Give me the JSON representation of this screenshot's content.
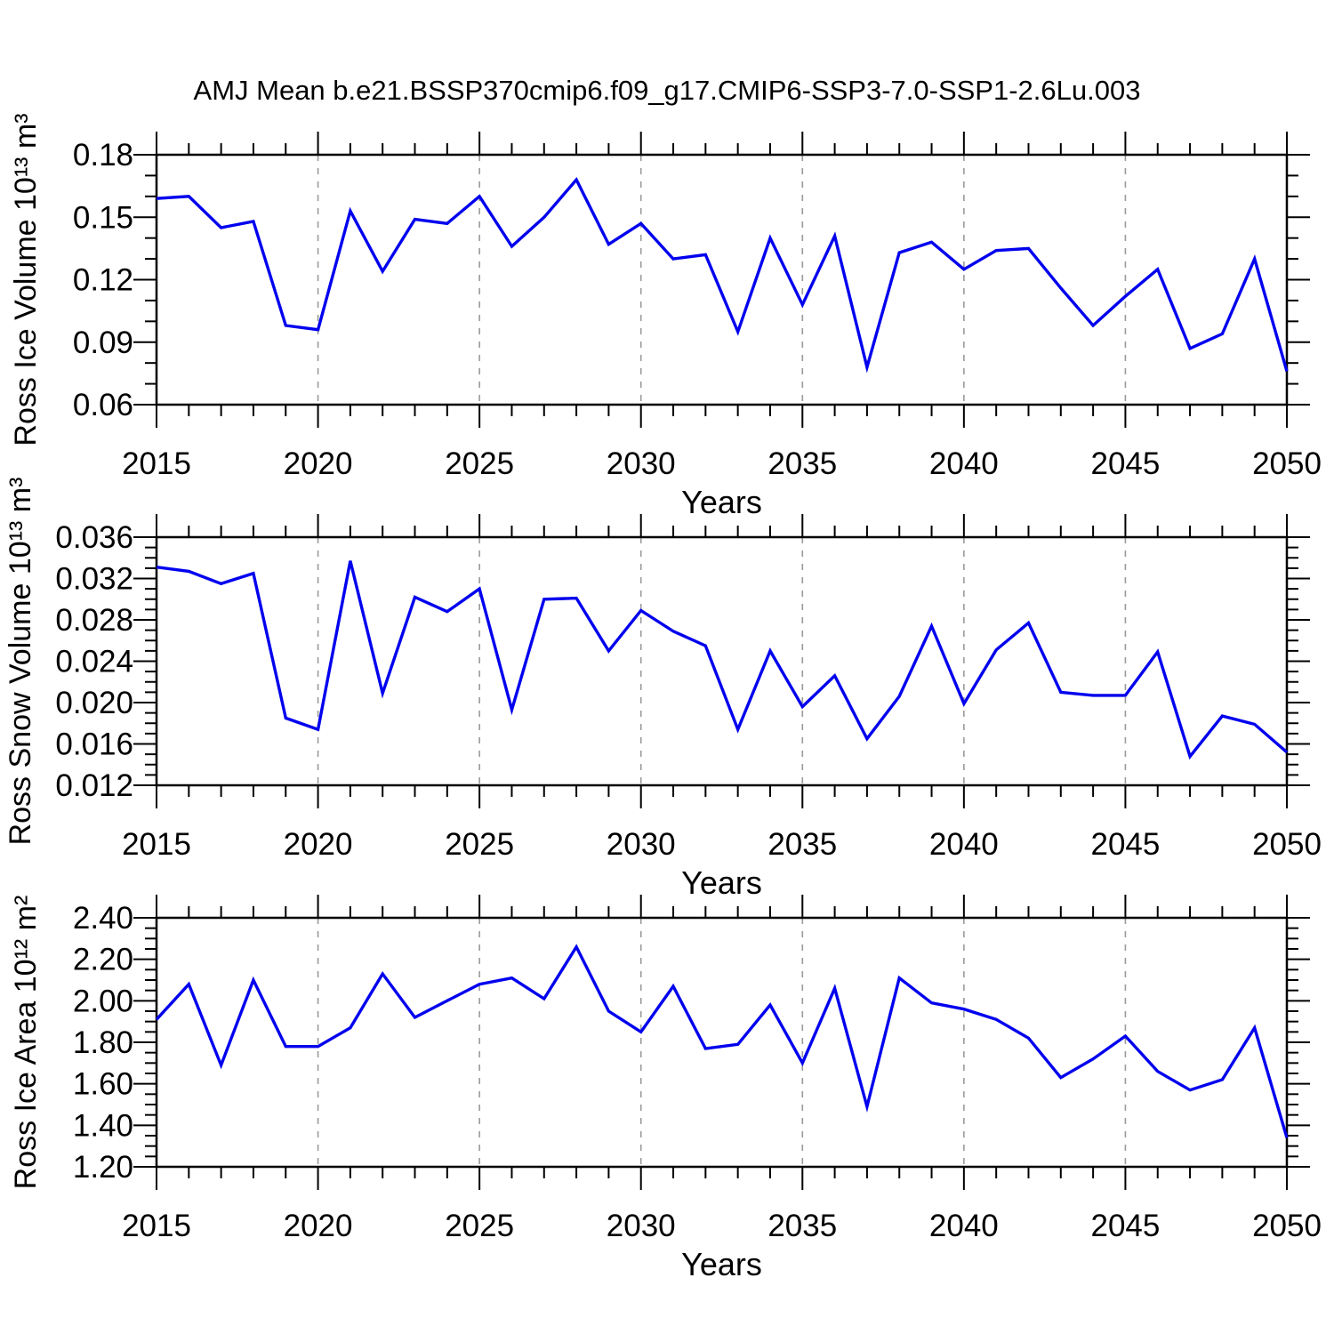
{
  "title": "AMJ Mean b.e21.BSSP370cmip6.f09_g17.CMIP6-SSP3-7.0-SSP1-2.6Lu.003",
  "colors": {
    "line": "#0000EE",
    "grid": "#9a9a9a",
    "axis": "#000000",
    "background": "#ffffff"
  },
  "chart_data": [
    {
      "type": "line",
      "name": "ross-ice-volume",
      "title": "",
      "xlabel": "Years",
      "ylabel": "Ross Ice Volume 10¹³ m³",
      "xlim": [
        2015,
        2050
      ],
      "ylim": [
        0.06,
        0.18
      ],
      "grid": "vertical-dashed",
      "legend_position": "none",
      "xticks": [
        2015,
        2020,
        2025,
        2030,
        2035,
        2040,
        2045,
        2050
      ],
      "xtick_labels": [
        "2015",
        "2020",
        "2025",
        "2030",
        "2035",
        "2040",
        "2045",
        "2050"
      ],
      "x_minor_step": 1,
      "x_major_step": 5,
      "grid_x": [
        2020,
        2025,
        2030,
        2035,
        2040,
        2045
      ],
      "yticks": [
        0.06,
        0.09,
        0.12,
        0.15,
        0.18
      ],
      "ytick_labels": [
        "0.06",
        "0.09",
        "0.12",
        "0.15",
        "0.18"
      ],
      "y_minor_step": 0.01,
      "x": [
        2015,
        2016,
        2017,
        2018,
        2019,
        2020,
        2021,
        2022,
        2023,
        2024,
        2025,
        2026,
        2027,
        2028,
        2029,
        2030,
        2031,
        2032,
        2033,
        2034,
        2035,
        2036,
        2037,
        2038,
        2039,
        2040,
        2041,
        2042,
        2043,
        2044,
        2045,
        2046,
        2047,
        2048,
        2049,
        2050
      ],
      "values": [
        0.159,
        0.16,
        0.145,
        0.148,
        0.098,
        0.096,
        0.153,
        0.124,
        0.149,
        0.147,
        0.16,
        0.136,
        0.15,
        0.168,
        0.137,
        0.147,
        0.13,
        0.132,
        0.095,
        0.14,
        0.108,
        0.141,
        0.078,
        0.133,
        0.138,
        0.125,
        0.134,
        0.135,
        0.116,
        0.098,
        0.112,
        0.125,
        0.087,
        0.094,
        0.13,
        0.076
      ]
    },
    {
      "type": "line",
      "name": "ross-snow-volume",
      "title": "",
      "xlabel": "Years",
      "ylabel": "Ross Snow Volume 10¹³ m³",
      "xlim": [
        2015,
        2050
      ],
      "ylim": [
        0.012,
        0.036
      ],
      "grid": "vertical-dashed",
      "legend_position": "none",
      "xticks": [
        2015,
        2020,
        2025,
        2030,
        2035,
        2040,
        2045,
        2050
      ],
      "xtick_labels": [
        "2015",
        "2020",
        "2025",
        "2030",
        "2035",
        "2040",
        "2045",
        "2050"
      ],
      "x_minor_step": 1,
      "x_major_step": 5,
      "grid_x": [
        2020,
        2025,
        2030,
        2035,
        2040,
        2045
      ],
      "yticks": [
        0.012,
        0.016,
        0.02,
        0.024,
        0.028,
        0.032,
        0.036
      ],
      "ytick_labels": [
        "0.012",
        "0.016",
        "0.020",
        "0.024",
        "0.028",
        "0.032",
        "0.036"
      ],
      "y_minor_step": 0.001,
      "x": [
        2015,
        2016,
        2017,
        2018,
        2019,
        2020,
        2021,
        2022,
        2023,
        2024,
        2025,
        2026,
        2027,
        2028,
        2029,
        2030,
        2031,
        2032,
        2033,
        2034,
        2035,
        2036,
        2037,
        2038,
        2039,
        2040,
        2041,
        2042,
        2043,
        2044,
        2045,
        2046,
        2047,
        2048,
        2049,
        2050
      ],
      "values": [
        0.0331,
        0.0327,
        0.0315,
        0.0325,
        0.0185,
        0.0174,
        0.0337,
        0.0209,
        0.0302,
        0.0288,
        0.031,
        0.0193,
        0.03,
        0.0301,
        0.025,
        0.0289,
        0.0269,
        0.0255,
        0.0174,
        0.025,
        0.0196,
        0.0226,
        0.0165,
        0.0206,
        0.0274,
        0.0199,
        0.0251,
        0.0277,
        0.021,
        0.0207,
        0.0207,
        0.0249,
        0.0148,
        0.0187,
        0.0179,
        0.0152
      ]
    },
    {
      "type": "line",
      "name": "ross-ice-area",
      "title": "",
      "xlabel": "Years",
      "ylabel": "Ross Ice Area 10¹² m²",
      "xlim": [
        2015,
        2050
      ],
      "ylim": [
        1.2,
        2.4
      ],
      "grid": "vertical-dashed",
      "legend_position": "none",
      "xticks": [
        2015,
        2020,
        2025,
        2030,
        2035,
        2040,
        2045,
        2050
      ],
      "xtick_labels": [
        "2015",
        "2020",
        "2025",
        "2030",
        "2035",
        "2040",
        "2045",
        "2050"
      ],
      "x_minor_step": 1,
      "x_major_step": 5,
      "grid_x": [
        2020,
        2025,
        2030,
        2035,
        2040,
        2045
      ],
      "yticks": [
        1.2,
        1.4,
        1.6,
        1.8,
        2.0,
        2.2,
        2.4
      ],
      "ytick_labels": [
        "1.20",
        "1.40",
        "1.60",
        "1.80",
        "2.00",
        "2.20",
        "2.40"
      ],
      "y_minor_step": 0.05,
      "x": [
        2015,
        2016,
        2017,
        2018,
        2019,
        2020,
        2021,
        2022,
        2023,
        2024,
        2025,
        2026,
        2027,
        2028,
        2029,
        2030,
        2031,
        2032,
        2033,
        2034,
        2035,
        2036,
        2037,
        2038,
        2039,
        2040,
        2041,
        2042,
        2043,
        2044,
        2045,
        2046,
        2047,
        2048,
        2049,
        2050
      ],
      "values": [
        1.91,
        2.08,
        1.69,
        2.1,
        1.78,
        1.78,
        1.87,
        2.13,
        1.92,
        2.0,
        2.08,
        2.11,
        2.01,
        2.26,
        1.95,
        1.85,
        2.07,
        1.77,
        1.79,
        1.98,
        1.7,
        2.06,
        1.49,
        2.11,
        1.99,
        1.96,
        1.91,
        1.82,
        1.63,
        1.72,
        1.83,
        1.66,
        1.57,
        1.62,
        1.87,
        1.34
      ]
    }
  ]
}
